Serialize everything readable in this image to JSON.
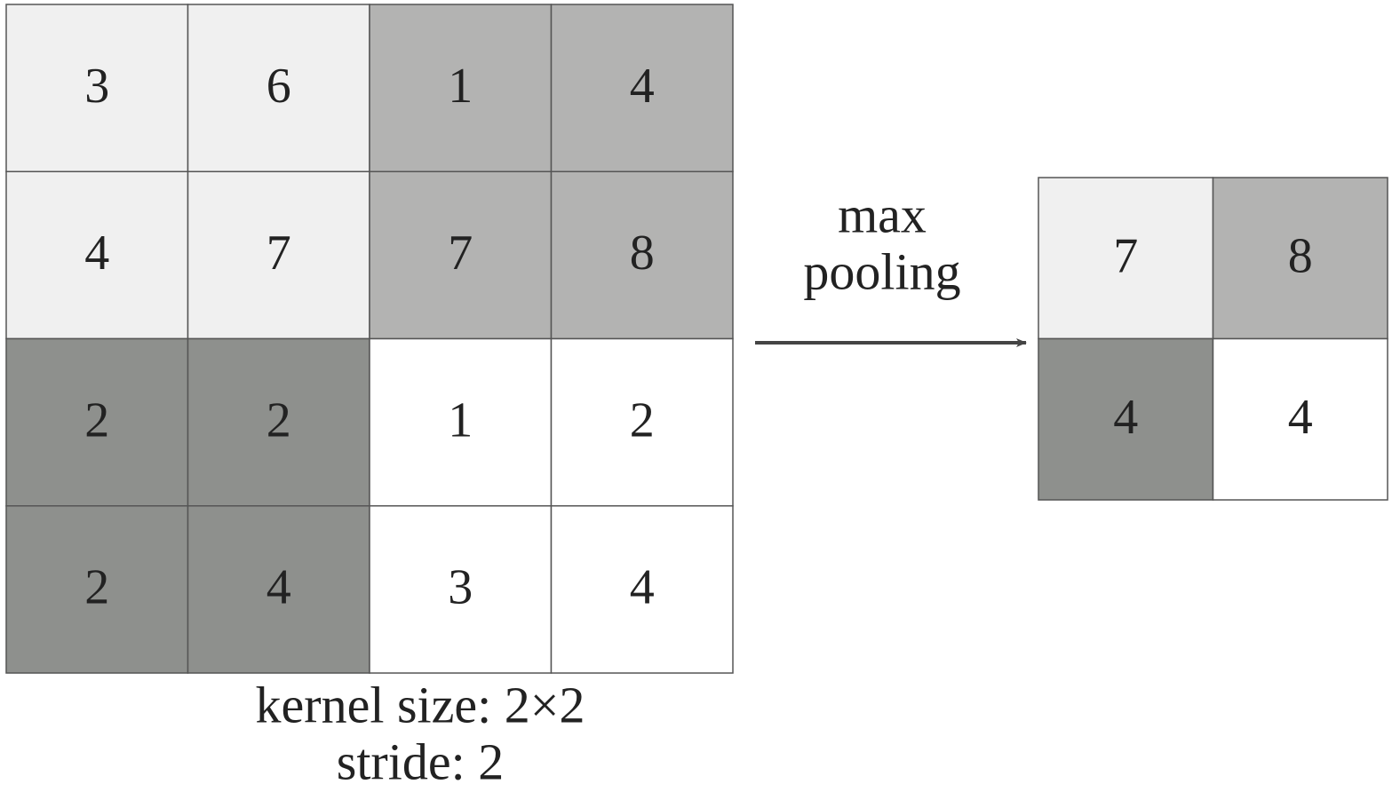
{
  "input": {
    "rows": [
      [
        3,
        6,
        1,
        4
      ],
      [
        4,
        7,
        7,
        8
      ],
      [
        2,
        2,
        1,
        2
      ],
      [
        2,
        4,
        3,
        4
      ]
    ]
  },
  "operation": {
    "line1": "max",
    "line2": "pooling"
  },
  "output": {
    "rows": [
      [
        7,
        8
      ],
      [
        4,
        4
      ]
    ]
  },
  "caption": {
    "kernel": "kernel size: 2×2",
    "stride": "stride: 2"
  }
}
